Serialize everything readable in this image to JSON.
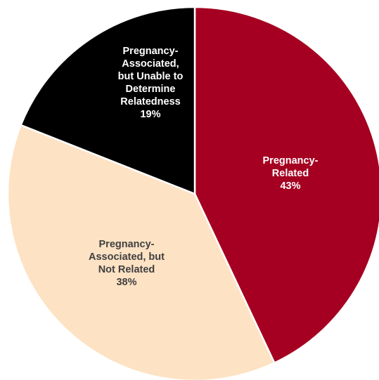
{
  "chart_data": {
    "type": "pie",
    "title": "",
    "slices": [
      {
        "lines": [
          "Pregnancy-",
          "Related"
        ],
        "value": 43,
        "value_label": "43%",
        "color": "#a50021",
        "text_color": "#ffffff"
      },
      {
        "lines": [
          "Pregnancy-",
          "Associated, but",
          "Not Related"
        ],
        "value": 38,
        "value_label": "38%",
        "color": "#fde2c4",
        "text_color": "#404040"
      },
      {
        "lines": [
          "Pregnancy-",
          "Associated,",
          "but Unable to",
          "Determine",
          "Relatedness"
        ],
        "value": 19,
        "value_label": "19%",
        "color": "#000000",
        "text_color": "#ffffff"
      }
    ],
    "start_angle_deg": 0,
    "direction": "clockwise",
    "legend": "none"
  }
}
